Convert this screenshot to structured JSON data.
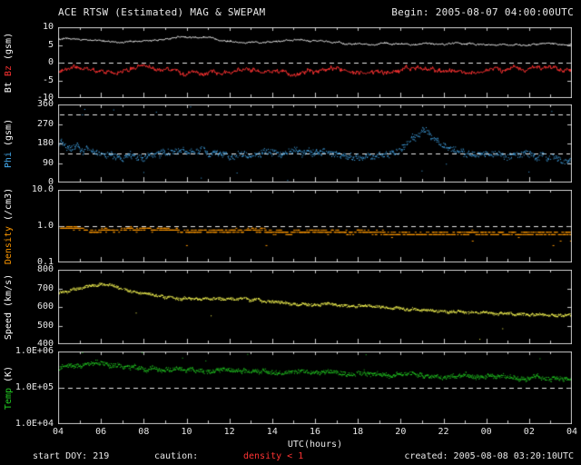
{
  "header": {
    "title": "ACE RTSW (Estimated) MAG & SWEPAM",
    "begin": "Begin: 2005-08-07 04:00:00UTC"
  },
  "footer": {
    "start_doy": "start DOY: 219",
    "caution_label": "caution:",
    "caution_value": "density < 1",
    "created": "created: 2005-08-08 03:20:10UTC"
  },
  "xaxis": {
    "title": "UTC(hours)",
    "tick_labels": [
      "04",
      "06",
      "08",
      "10",
      "12",
      "14",
      "16",
      "18",
      "20",
      "22",
      "00",
      "02",
      "04"
    ],
    "hours_span": 24
  },
  "colors": {
    "background": "#000000",
    "frame": "#c8c8c8",
    "text": "#e8e8e8",
    "dashed": "#e8e8e8",
    "bt": "#ffffff",
    "bz": "#ff3232",
    "phi": "#44aaee",
    "density": "#ff9900",
    "speed": "#ffff55",
    "temp": "#22cc22",
    "caution": "#ff3333"
  },
  "chart_data": [
    {
      "name": "mag",
      "type": "line",
      "ylabel_segments": [
        {
          "text": "Bt ",
          "color": "#ffffff"
        },
        {
          "text": "Bz ",
          "color": "#ff3232"
        },
        {
          "text": "(gsm)",
          "color": "#ffffff"
        }
      ],
      "ylim": [
        -10,
        10
      ],
      "log": false,
      "yticks": [
        {
          "v": 10,
          "label": "10"
        },
        {
          "v": 5,
          "label": "5"
        },
        {
          "v": 0,
          "label": "0"
        },
        {
          "v": -5,
          "label": "-5"
        },
        {
          "v": -10,
          "label": "-10"
        }
      ],
      "dashed": [
        0
      ],
      "series": [
        {
          "name": "Bt",
          "color": "#ffffff",
          "style": "line",
          "noise": 0.5,
          "anchors_hourly": [
            6.8,
            6.5,
            6.2,
            5.8,
            6.0,
            6.6,
            7.4,
            6.9,
            6.2,
            5.8,
            6.1,
            6.4,
            6.0,
            5.6,
            5.2,
            5.6,
            5.1,
            4.9,
            5.3,
            5.6,
            5.1,
            4.9,
            5.1,
            5.3,
            5.0
          ]
        },
        {
          "name": "Bz",
          "color": "#ff3232",
          "style": "line",
          "noise": 1.3,
          "anchors_hourly": [
            -2.0,
            -1.5,
            -2.8,
            -2.4,
            -1.2,
            -2.0,
            -3.4,
            -2.6,
            -3.0,
            -2.2,
            -1.6,
            -2.9,
            -2.5,
            -2.0,
            -3.0,
            -2.5,
            -2.0,
            -1.6,
            -2.4,
            -3.0,
            -2.1,
            -2.5,
            -2.0,
            -1.6,
            -2.0
          ]
        }
      ]
    },
    {
      "name": "phi",
      "type": "scatter",
      "ylabel_segments": [
        {
          "text": "Phi ",
          "color": "#44aaee"
        },
        {
          "text": "(gsm)",
          "color": "#ffffff"
        }
      ],
      "ylim": [
        0,
        360
      ],
      "log": false,
      "yticks": [
        {
          "v": 360,
          "label": "360"
        },
        {
          "v": 270,
          "label": "270"
        },
        {
          "v": 180,
          "label": "180"
        },
        {
          "v": 90,
          "label": "90"
        },
        {
          "v": 0,
          "label": "0"
        }
      ],
      "dashed": [
        135,
        315
      ],
      "series": [
        {
          "name": "Phi",
          "color": "#44aaee",
          "style": "scatter",
          "noise": 26,
          "skip": 0.25,
          "outlier": {
            "p": 0.012,
            "mode": "wrap"
          },
          "anchors_hourly": [
            185,
            165,
            132,
            116,
            121,
            136,
            149,
            141,
            126,
            131,
            146,
            154,
            141,
            131,
            122,
            136,
            158,
            252,
            182,
            141,
            126,
            136,
            131,
            116,
            106
          ]
        }
      ]
    },
    {
      "name": "density",
      "type": "scatter",
      "ylabel_segments": [
        {
          "text": "Density ",
          "color": "#ff9900"
        },
        {
          "text": "(/cm3)",
          "color": "#ffffff"
        }
      ],
      "ylim": [
        0.1,
        10
      ],
      "log": true,
      "yticks": [
        {
          "v": 10,
          "label": "10.0"
        },
        {
          "v": 1,
          "label": "1.0"
        },
        {
          "v": 0.1,
          "label": "0.1"
        }
      ],
      "dashed": [
        1
      ],
      "series": [
        {
          "name": "Density",
          "color": "#ff9900",
          "style": "scatter",
          "noise": 0.07,
          "skip": 0.35,
          "quantize": 0.1,
          "dash": true,
          "outlier": {
            "p": 0.01,
            "mode": "mult",
            "amt": 0.45
          },
          "anchors_hourly": [
            0.9,
            0.85,
            0.76,
            0.8,
            0.84,
            0.8,
            0.74,
            0.7,
            0.75,
            0.8,
            0.71,
            0.66,
            0.7,
            0.72,
            0.68,
            0.7,
            0.65,
            0.6,
            0.65,
            0.7,
            0.65,
            0.62,
            0.68,
            0.64,
            0.62
          ]
        }
      ]
    },
    {
      "name": "speed",
      "type": "scatter",
      "ylabel_segments": [
        {
          "text": "Speed ",
          "color": "#ffffff"
        },
        {
          "text": "(km/s)",
          "color": "#ffffff"
        }
      ],
      "ylim": [
        400,
        800
      ],
      "log": false,
      "yticks": [
        {
          "v": 800,
          "label": "800"
        },
        {
          "v": 700,
          "label": "700"
        },
        {
          "v": 600,
          "label": "600"
        },
        {
          "v": 500,
          "label": "500"
        },
        {
          "v": 400,
          "label": "400"
        }
      ],
      "dashed": [],
      "series": [
        {
          "name": "Speed",
          "color": "#ffff55",
          "style": "scatter",
          "noise": 12,
          "skip": 0.15,
          "outlier": {
            "p": 0.004,
            "mode": "drop",
            "amt": 140
          },
          "anchors_hourly": [
            680,
            702,
            728,
            698,
            672,
            656,
            646,
            641,
            650,
            641,
            631,
            621,
            616,
            611,
            606,
            601,
            596,
            586,
            581,
            576,
            571,
            566,
            561,
            558,
            556
          ]
        }
      ]
    },
    {
      "name": "temp",
      "type": "scatter",
      "ylabel_segments": [
        {
          "text": "Temp ",
          "color": "#22cc22"
        },
        {
          "text": "(K)",
          "color": "#ffffff"
        }
      ],
      "ylim": [
        10000,
        1000000
      ],
      "log": true,
      "yticks": [
        {
          "v": 1000000,
          "label": "1.0E+06"
        },
        {
          "v": 100000,
          "label": "1.0E+05"
        },
        {
          "v": 10000,
          "label": "1.0E+04"
        }
      ],
      "dashed": [
        100000
      ],
      "series": [
        {
          "name": "Temp",
          "color": "#22cc22",
          "style": "scatter",
          "noise": 0.1,
          "skip": 0.12,
          "outlier": {
            "p": 0.005,
            "mode": "mult",
            "amt": 2.2
          },
          "anchors_hourly": [
            320000,
            450000,
            500000,
            400000,
            360000,
            320000,
            300000,
            290000,
            310000,
            290000,
            270000,
            260000,
            270000,
            250000,
            240000,
            230000,
            250000,
            230000,
            210000,
            220000,
            210000,
            200000,
            210000,
            200000,
            190000
          ]
        }
      ]
    }
  ]
}
